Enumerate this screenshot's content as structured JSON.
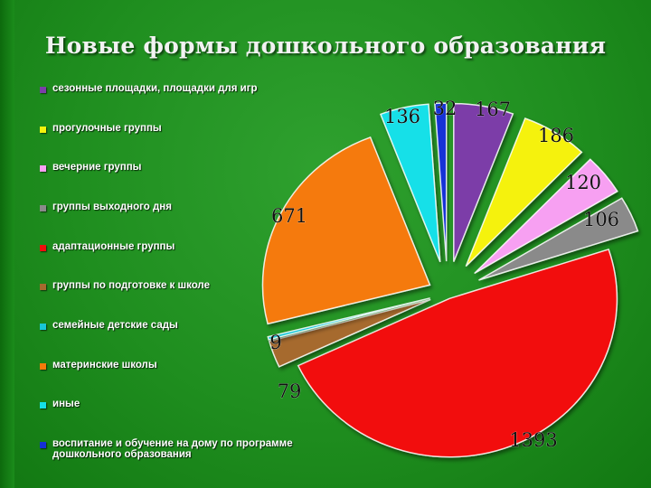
{
  "title": "Новые формы дошкольного образования",
  "chart_data": {
    "type": "pie",
    "title": "Новые формы дошкольного образования",
    "legend_placement": "left",
    "slices": [
      {
        "label": "сезонные площадки, площадки для игр",
        "value": 167,
        "color": "#7b3ea8"
      },
      {
        "label": "прогулочные группы",
        "value": 186,
        "color": "#f5f20c"
      },
      {
        "label": "вечерние группы",
        "value": 120,
        "color": "#f7a0f2"
      },
      {
        "label": "группы выходного дня",
        "value": 106,
        "color": "#8a8a8a"
      },
      {
        "label": "адаптационные группы",
        "value": 1393,
        "color": "#f20d0d"
      },
      {
        "label": "группы по подготовке к школе",
        "value": 79,
        "color": "#a66a2e"
      },
      {
        "label": "семейные детские сады",
        "value": 9,
        "color": "#18c7d6"
      },
      {
        "label": "материнские школы",
        "value": 671,
        "color": "#f57a0a"
      },
      {
        "label": "иные",
        "value": 136,
        "color": "#14e0e8"
      },
      {
        "label": "воспитание и обучение на дому по программе дошкольного образования",
        "value": 32,
        "color": "#1530d6"
      }
    ]
  }
}
